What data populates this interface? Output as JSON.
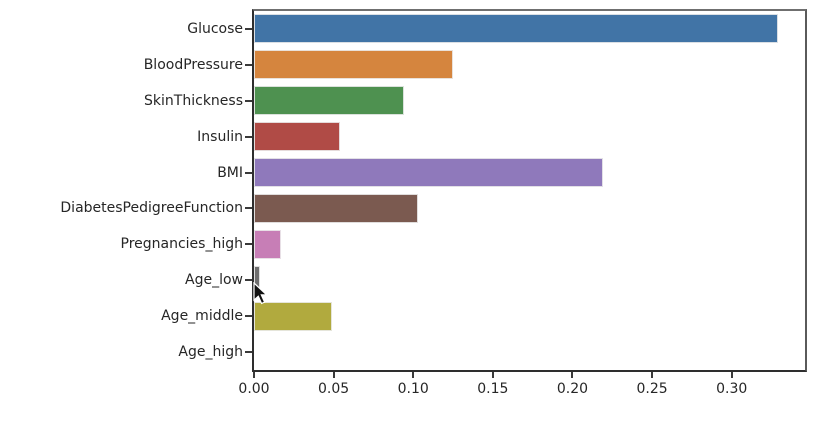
{
  "chart_data": {
    "type": "bar",
    "orientation": "horizontal",
    "title": "",
    "xlabel": "",
    "ylabel": "",
    "categories": [
      "Glucose",
      "BloodPressure",
      "SkinThickness",
      "Insulin",
      "BMI",
      "DiabetesPedigreeFunction",
      "Pregnancies_high",
      "Age_low",
      "Age_middle",
      "Age_high"
    ],
    "values": [
      0.329,
      0.125,
      0.094,
      0.054,
      0.219,
      0.103,
      0.017,
      0.004,
      0.049,
      0.0
    ],
    "bar_colors": [
      "#4174a6",
      "#d5853e",
      "#4e9150",
      "#b04b46",
      "#8f79bb",
      "#7b5a50",
      "#c77eb6",
      "#6e6e6e",
      "#b1aa3e",
      "#56b4c4"
    ],
    "x_tick_labels": [
      "0.00",
      "0.05",
      "0.10",
      "0.15",
      "0.20",
      "0.25",
      "0.30"
    ],
    "x_tick_values": [
      0.0,
      0.05,
      0.1,
      0.15,
      0.2,
      0.25,
      0.3
    ],
    "xlim": [
      0.0,
      0.346
    ],
    "grid": false,
    "legend": "none",
    "bar_height_frac": 0.8
  },
  "cursor": {
    "visible": true
  }
}
